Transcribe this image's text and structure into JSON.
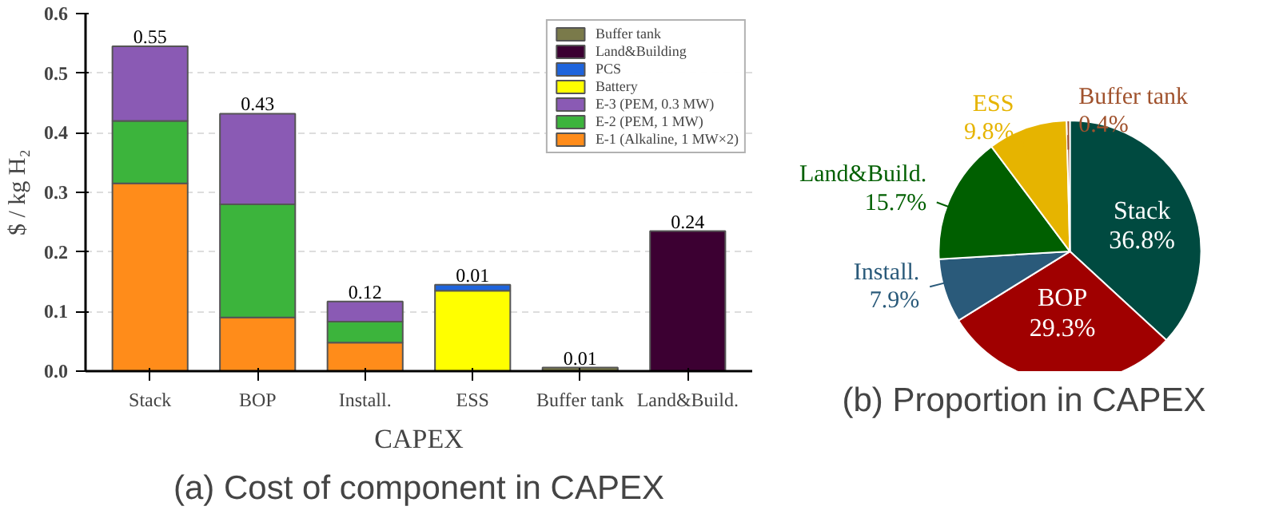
{
  "chart_data": [
    {
      "type": "bar",
      "title": "(a) Cost of component in CAPEX",
      "xlabel": "CAPEX",
      "ylabel": "$ / kg H₂",
      "stacked": true,
      "categories": [
        "Stack",
        "BOP",
        "Install.",
        "ESS",
        "Buffer tank",
        "Land&Build."
      ],
      "series": [
        {
          "name": "E-1 (Alkaline, 1 MW×2)",
          "color": "#ff8c1a",
          "values": [
            0.315,
            0.09,
            0.048,
            null,
            null,
            null
          ]
        },
        {
          "name": "E-2 (PEM, 1 MW)",
          "color": "#3cb43c",
          "values": [
            0.105,
            0.19,
            0.035,
            null,
            null,
            null
          ]
        },
        {
          "name": "E-3 (PEM, 0.3 MW)",
          "color": "#8a5ab4",
          "values": [
            0.125,
            0.152,
            0.034,
            null,
            null,
            null
          ]
        },
        {
          "name": "Battery",
          "color": "#ffff00",
          "values": [
            null,
            null,
            null,
            0.135,
            null,
            null
          ]
        },
        {
          "name": "PCS",
          "color": "#1e64dc",
          "values": [
            null,
            null,
            null,
            0.01,
            null,
            null
          ],
          "value_labels": [
            null,
            null,
            null,
            "0.01",
            null,
            null
          ]
        },
        {
          "name": "Land&Building",
          "color": "#3c0032",
          "values": [
            null,
            null,
            null,
            null,
            null,
            0.235
          ]
        },
        {
          "name": "Buffer tank",
          "color": "#7a7a4a",
          "values": [
            null,
            null,
            null,
            null,
            0.006,
            null
          ]
        }
      ],
      "totals": [
        "0.55",
        "0.43",
        "0.12",
        null,
        "0.01",
        "0.24"
      ],
      "ylim": [
        0,
        0.6
      ],
      "yticks": [
        {
          "value": 0,
          "label": "0.0"
        },
        0.1,
        0.2,
        0.3,
        0.4,
        0.5,
        0.6
      ],
      "grid": "y",
      "legend": "top right"
    },
    {
      "type": "pie",
      "title": "(b) Proportion in CAPEX",
      "categories": [
        "Stack",
        "BOP",
        "Install.",
        "Land&Build.",
        "ESS",
        "Buffer tank"
      ],
      "values": [
        36.8,
        29.3,
        7.9,
        15.7,
        9.8,
        0.4
      ],
      "value_labels": [
        "36.8%",
        "29.3%",
        "7.9%",
        "15.7%",
        "9.8%",
        "0.4%"
      ],
      "colors": [
        "#004a40",
        "#a00000",
        "#2a5a7a",
        "#005f00",
        "#e6b400",
        "#a0522d"
      ]
    }
  ]
}
